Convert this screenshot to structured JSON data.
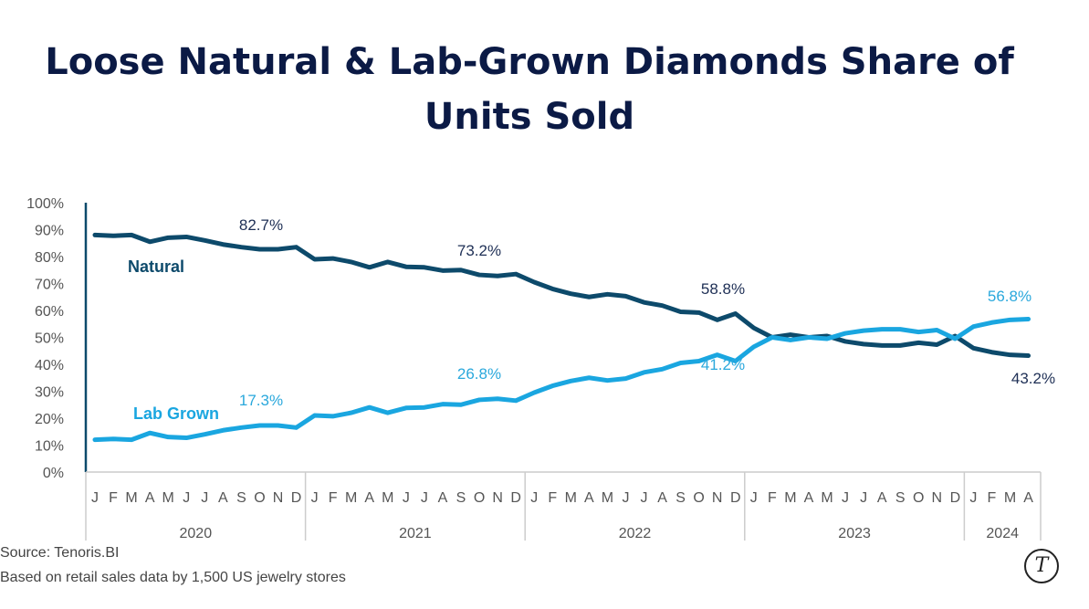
{
  "chart_data": {
    "type": "line",
    "title": "Loose Natural & Lab-Grown Diamonds Share of Units Sold",
    "xlabel": "",
    "ylabel": "",
    "ylim": [
      0,
      100
    ],
    "y_ticks": [
      "0%",
      "10%",
      "20%",
      "30%",
      "40%",
      "50%",
      "60%",
      "70%",
      "80%",
      "90%",
      "100%"
    ],
    "years": [
      {
        "label": "2020",
        "months": [
          "J",
          "F",
          "M",
          "A",
          "M",
          "J",
          "J",
          "A",
          "S",
          "O",
          "N",
          "D"
        ]
      },
      {
        "label": "2021",
        "months": [
          "J",
          "F",
          "M",
          "A",
          "M",
          "J",
          "J",
          "A",
          "S",
          "O",
          "N",
          "D"
        ]
      },
      {
        "label": "2022",
        "months": [
          "J",
          "F",
          "M",
          "A",
          "M",
          "J",
          "J",
          "A",
          "S",
          "O",
          "N",
          "D"
        ]
      },
      {
        "label": "2023",
        "months": [
          "J",
          "F",
          "M",
          "A",
          "M",
          "J",
          "J",
          "A",
          "S",
          "O",
          "N",
          "D"
        ]
      },
      {
        "label": "2024",
        "months": [
          "J",
          "F",
          "M",
          "A"
        ]
      }
    ],
    "grid": false,
    "series": [
      {
        "name": "Natural",
        "color": "#0d4a6b",
        "values": [
          88,
          87.7,
          88,
          85.5,
          87,
          87.3,
          86,
          84.5,
          83.5,
          82.7,
          82.7,
          83.5,
          79,
          79.3,
          78,
          76,
          78,
          76.2,
          76,
          74.8,
          75,
          73.2,
          72.8,
          73.5,
          70.5,
          68,
          66.2,
          65,
          66,
          65.3,
          63,
          61.8,
          59.5,
          59.2,
          56.5,
          58.8,
          53.5,
          50,
          51,
          50,
          50.5,
          48.5,
          47.5,
          47,
          47,
          48,
          47.3,
          50.5,
          46,
          44.5,
          43.5,
          43.2
        ]
      },
      {
        "name": "Lab Grown",
        "color": "#1aa6e0",
        "values": [
          12,
          12.3,
          12,
          14.5,
          13,
          12.7,
          14,
          15.5,
          16.5,
          17.3,
          17.3,
          16.5,
          21,
          20.7,
          22,
          24,
          22,
          23.8,
          24,
          25.2,
          25,
          26.8,
          27.2,
          26.5,
          29.5,
          32,
          33.8,
          35,
          34,
          34.7,
          37,
          38.2,
          40.5,
          41.2,
          43.5,
          41.2,
          46.5,
          50,
          49,
          50,
          49.5,
          51.5,
          52.5,
          53,
          53,
          52,
          52.7,
          49.5,
          54,
          55.5,
          56.5,
          56.8
        ]
      }
    ],
    "annotations": [
      {
        "series": "Natural",
        "text": "82.7%"
      },
      {
        "series": "Natural",
        "text": "73.2%"
      },
      {
        "series": "Natural",
        "text": "58.8%"
      },
      {
        "series": "Natural",
        "text": "43.2%"
      },
      {
        "series": "Lab Grown",
        "text": "17.3%"
      },
      {
        "series": "Lab Grown",
        "text": "26.8%"
      },
      {
        "series": "Lab Grown",
        "text": "41.2%"
      },
      {
        "series": "Lab Grown",
        "text": "56.8%"
      }
    ]
  },
  "footer": {
    "source": "Source: Tenoris.BI",
    "note": "Based on retail sales data by 1,500 US jewelry stores",
    "logo_text": "T"
  }
}
